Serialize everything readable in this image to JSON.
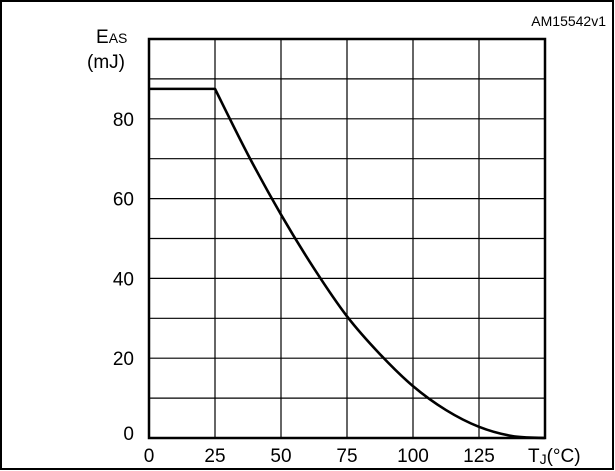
{
  "chart_data": {
    "type": "line",
    "reference_code": "AM15542v1",
    "ylabel_main": "E",
    "ylabel_sub": "AS",
    "ylabel_unit": "(mJ)",
    "xlabel_main": "T",
    "xlabel_sub": "J",
    "xlabel_unit": "(°C)",
    "xlim": [
      0,
      150
    ],
    "ylim": [
      0,
      100
    ],
    "x_ticks": [
      "0",
      "25",
      "50",
      "75",
      "100",
      "125"
    ],
    "y_ticks": [
      "0",
      "20",
      "40",
      "60",
      "80"
    ],
    "x_tick_values": [
      0,
      25,
      50,
      75,
      100,
      125
    ],
    "y_tick_values": [
      0,
      20,
      40,
      60,
      80
    ],
    "grid": true,
    "x_grid_step": 25,
    "y_grid_step": 10,
    "series": [
      {
        "x": [
          0,
          25,
          37.5,
          50,
          62.5,
          75,
          87.5,
          100,
          112.5,
          125,
          137.5,
          150
        ],
        "y": [
          87.5,
          87.5,
          71,
          56,
          42.5,
          30.5,
          21,
          13,
          7,
          2.8,
          0.5,
          0
        ]
      }
    ],
    "colors": {
      "line": "#000000",
      "grid": "#000000",
      "background": "#ffffff"
    }
  }
}
